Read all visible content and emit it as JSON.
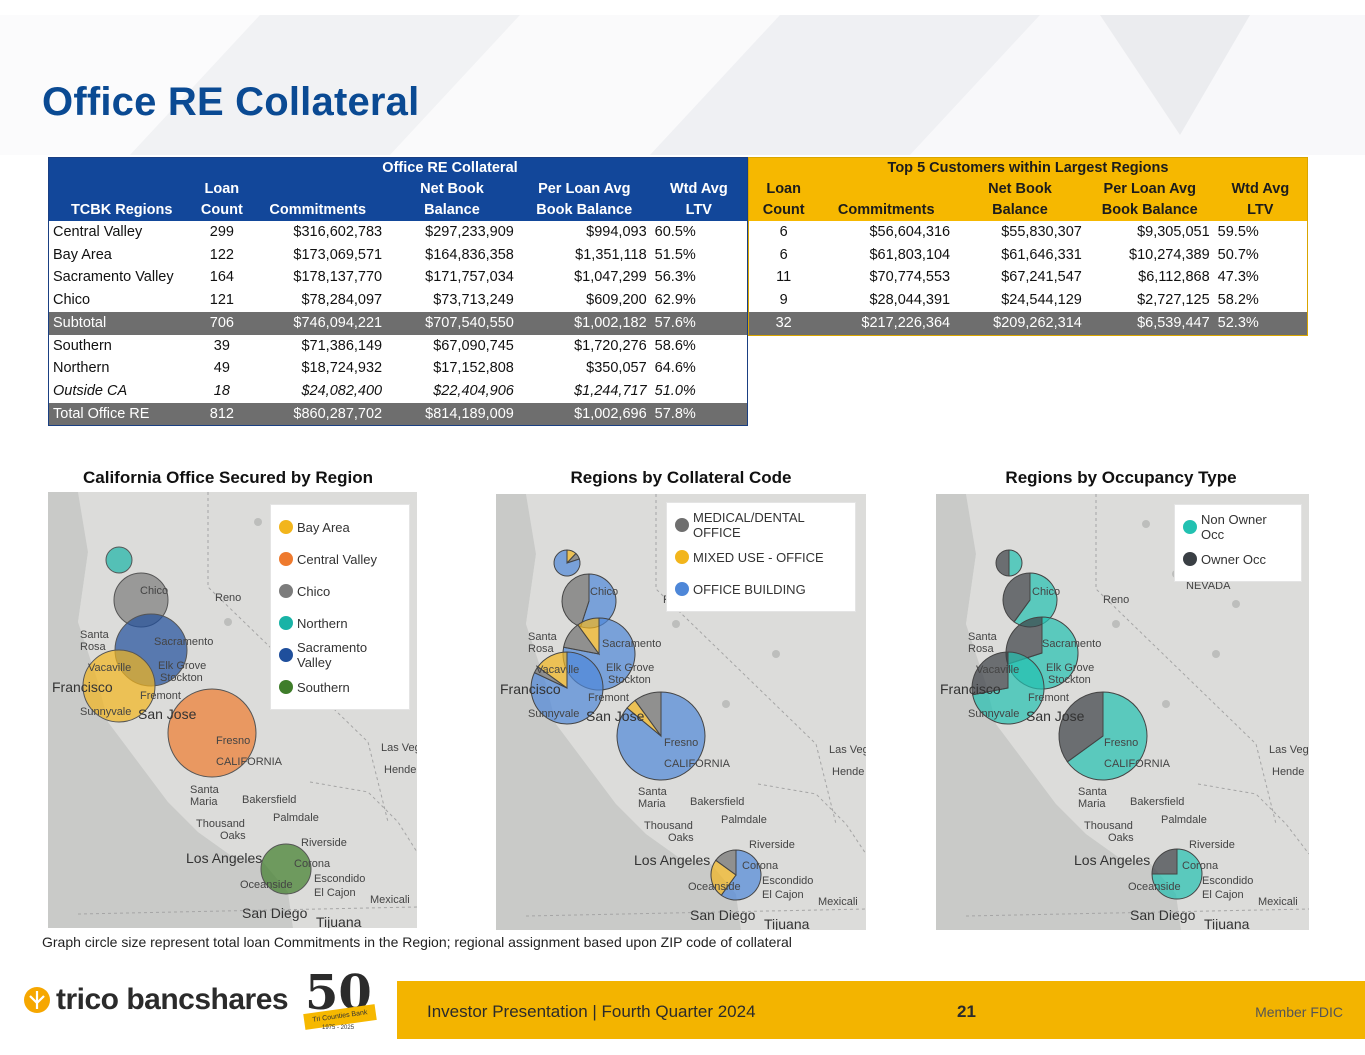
{
  "title": "Office RE Collateral",
  "main_table": {
    "group_header": "Office RE Collateral",
    "headers": [
      {
        "l1": "",
        "l2": "TCBK Regions"
      },
      {
        "l1": "Loan",
        "l2": "Count"
      },
      {
        "l1": "",
        "l2": "Commitments"
      },
      {
        "l1": "Net Book",
        "l2": "Balance"
      },
      {
        "l1": "Per Loan Avg",
        "l2": "Book Balance"
      },
      {
        "l1": "Wtd Avg",
        "l2": "LTV"
      }
    ],
    "rows": [
      {
        "region": "Central Valley",
        "count": "299",
        "commitments": "$316,602,783",
        "net_book": "$297,233,909",
        "per_loan": "$994,093",
        "ltv": "60.5%"
      },
      {
        "region": "Bay Area",
        "count": "122",
        "commitments": "$173,069,571",
        "net_book": "$164,836,358",
        "per_loan": "$1,351,118",
        "ltv": "51.5%"
      },
      {
        "region": "Sacramento Valley",
        "count": "164",
        "commitments": "$178,137,770",
        "net_book": "$171,757,034",
        "per_loan": "$1,047,299",
        "ltv": "56.3%"
      },
      {
        "region": "Chico",
        "count": "121",
        "commitments": "$78,284,097",
        "net_book": "$73,713,249",
        "per_loan": "$609,200",
        "ltv": "62.9%"
      },
      {
        "region": "Subtotal",
        "count": "706",
        "commitments": "$746,094,221",
        "net_book": "$707,540,550",
        "per_loan": "$1,002,182",
        "ltv": "57.6%"
      },
      {
        "region": "Southern",
        "count": "39",
        "commitments": "$71,386,149",
        "net_book": "$67,090,745",
        "per_loan": "$1,720,276",
        "ltv": "58.6%"
      },
      {
        "region": "Northern",
        "count": "49",
        "commitments": "$18,724,932",
        "net_book": "$17,152,808",
        "per_loan": "$350,057",
        "ltv": "64.6%"
      },
      {
        "region": "Outside CA",
        "count": "18",
        "commitments": "$24,082,400",
        "net_book": "$22,404,906",
        "per_loan": "$1,244,717",
        "ltv": "51.0%"
      },
      {
        "region": "Total Office RE",
        "count": "812",
        "commitments": "$860,287,702",
        "net_book": "$814,189,009",
        "per_loan": "$1,002,696",
        "ltv": "57.8%"
      }
    ]
  },
  "top_table": {
    "group_header": "Top 5 Customers within Largest Regions",
    "headers": [
      {
        "l1": "Loan",
        "l2": "Count"
      },
      {
        "l1": "",
        "l2": "Commitments"
      },
      {
        "l1": "Net Book",
        "l2": "Balance"
      },
      {
        "l1": "Per Loan Avg",
        "l2": "Book Balance"
      },
      {
        "l1": "Wtd Avg",
        "l2": "LTV"
      }
    ],
    "rows": [
      {
        "count": "6",
        "commitments": "$56,604,316",
        "net_book": "$55,830,307",
        "per_loan": "$9,305,051",
        "ltv": "59.5%"
      },
      {
        "count": "6",
        "commitments": "$61,803,104",
        "net_book": "$61,646,331",
        "per_loan": "$10,274,389",
        "ltv": "50.7%"
      },
      {
        "count": "11",
        "commitments": "$70,774,553",
        "net_book": "$67,241,547",
        "per_loan": "$6,112,868",
        "ltv": "47.3%"
      },
      {
        "count": "9",
        "commitments": "$28,044,391",
        "net_book": "$24,544,129",
        "per_loan": "$2,727,125",
        "ltv": "58.2%"
      },
      {
        "count": "32",
        "commitments": "$217,226,364",
        "net_book": "$209,262,314",
        "per_loan": "$6,539,447",
        "ltv": "52.3%"
      }
    ]
  },
  "maps": {
    "labels": {
      "reno": "Reno",
      "santa_rosa": "Santa Rosa",
      "sacramento": "Sacramento",
      "vacaville": "Vacaville",
      "elk_grove": "Elk Grove",
      "stockton": "Stockton",
      "francisco": "Francisco",
      "fremont": "Fremont",
      "sunnyvale": "Sunnyvale",
      "san_jose": "San Jose",
      "fresno": "Fresno",
      "california": "CALIFORNIA",
      "las_vegas": "Las Veg",
      "henderson": "Hende",
      "santa_maria": "Santa Maria",
      "bakersfield": "Bakersfield",
      "thousand_oaks": "Thousand Oaks",
      "palmdale": "Palmdale",
      "riverside": "Riverside",
      "los_angeles": "Los Angeles",
      "corona": "Corona",
      "oceanside": "Oceanside",
      "escondido": "Escondido",
      "el_cajon": "El Cajon",
      "mexicali": "Mexicali",
      "san_diego": "San Diego",
      "tijuana": "Tijuana",
      "chico": "Chico",
      "nevada": "NEVADA"
    },
    "region_map": {
      "title": "California Office Secured by Region",
      "legend": [
        {
          "label": "Bay Area",
          "color": "#f2b51c"
        },
        {
          "label": "Central Valley",
          "color": "#ee7a2e"
        },
        {
          "label": "Chico",
          "color": "#7c7c7c"
        },
        {
          "label": "Northern",
          "color": "#19b3a6"
        },
        {
          "label": "Sacramento Valley",
          "color": "#1f4f9c"
        },
        {
          "label": "Southern",
          "color": "#3f7d2a"
        }
      ]
    },
    "collateral_map": {
      "title": "Regions by Collateral Code",
      "legend": [
        {
          "label": "MEDICAL/DENTAL OFFICE",
          "color": "#6f6f6f"
        },
        {
          "label": "MIXED USE - OFFICE",
          "color": "#f2b51c"
        },
        {
          "label": "OFFICE BUILDING",
          "color": "#4e87d8"
        }
      ]
    },
    "occupancy_map": {
      "title": "Regions by Occupancy Type",
      "legend": [
        {
          "label": "Non Owner Occ",
          "color": "#22c1b1"
        },
        {
          "label": "Owner Occ",
          "color": "#3a3f44"
        }
      ]
    }
  },
  "footnote": "Graph circle size represent total loan Commitments in the Region; regional assignment based upon ZIP code of collateral",
  "footer": {
    "brand": "trico bancshares",
    "anniversary": "50",
    "anniversary_band": "Tri Counties Bank",
    "anniversary_years": "1975 - 2025",
    "presentation": "Investor Presentation  |  Fourth Quarter 2024",
    "page": "21",
    "fdic": "Member FDIC"
  }
}
